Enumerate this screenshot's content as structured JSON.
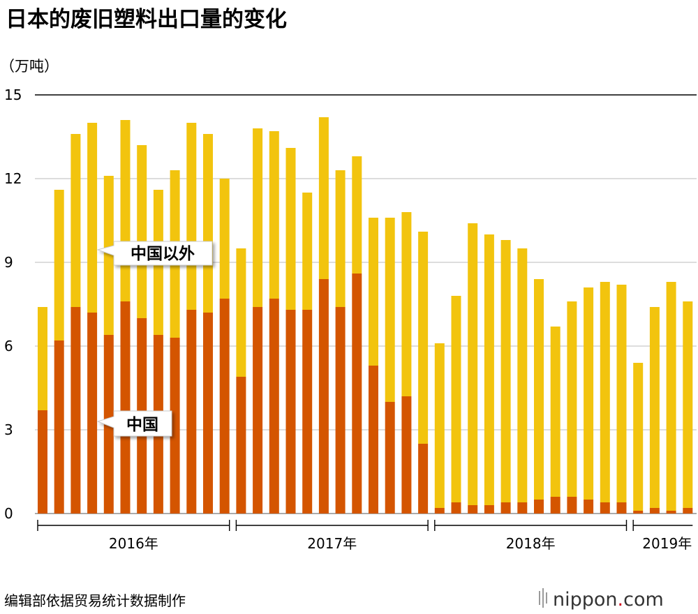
{
  "title": "日本的废旧塑料出口量的变化",
  "unit_label": "（万吨）",
  "source": "编辑部依据贸易统计数据制作",
  "brand": {
    "name": "nippon",
    "dot": ".",
    "suffix": "com"
  },
  "chart_data": {
    "type": "bar",
    "stacked": true,
    "ylim": [
      0,
      15
    ],
    "yticks": [
      "0",
      "3",
      "6",
      "9",
      "12",
      "15"
    ],
    "grid": true,
    "months": [
      "2016-01",
      "2016-02",
      "2016-03",
      "2016-04",
      "2016-05",
      "2016-06",
      "2016-07",
      "2016-08",
      "2016-09",
      "2016-10",
      "2016-11",
      "2016-12",
      "2017-01",
      "2017-02",
      "2017-03",
      "2017-04",
      "2017-05",
      "2017-06",
      "2017-07",
      "2017-08",
      "2017-09",
      "2017-10",
      "2017-11",
      "2017-12",
      "2018-01",
      "2018-02",
      "2018-03",
      "2018-04",
      "2018-05",
      "2018-06",
      "2018-07",
      "2018-08",
      "2018-09",
      "2018-10",
      "2018-11",
      "2018-12",
      "2019-01",
      "2019-02",
      "2019-03",
      "2019-04"
    ],
    "year_groups": [
      {
        "label": "2016年",
        "count": 12
      },
      {
        "label": "2017年",
        "count": 12
      },
      {
        "label": "2018年",
        "count": 12
      },
      {
        "label": "2019年",
        "count": 4
      }
    ],
    "series": [
      {
        "name": "中国",
        "color": "#d45500",
        "values": [
          3.7,
          6.2,
          7.4,
          7.2,
          6.4,
          7.6,
          7.0,
          6.4,
          6.3,
          7.3,
          7.2,
          7.7,
          4.9,
          7.4,
          7.7,
          7.3,
          7.3,
          8.4,
          7.4,
          8.6,
          5.3,
          4.0,
          4.2,
          2.5,
          0.2,
          0.4,
          0.3,
          0.3,
          0.4,
          0.4,
          0.5,
          0.6,
          0.6,
          0.5,
          0.4,
          0.4,
          0.1,
          0.2,
          0.1,
          0.2
        ]
      },
      {
        "name": "中国以外",
        "color": "#f2c40e",
        "values": [
          3.7,
          5.4,
          6.2,
          6.8,
          5.7,
          6.5,
          6.2,
          5.2,
          6.0,
          6.7,
          6.4,
          4.3,
          4.6,
          6.4,
          6.0,
          5.8,
          4.2,
          5.8,
          4.9,
          4.2,
          5.3,
          6.6,
          6.6,
          7.6,
          5.9,
          7.4,
          10.1,
          9.7,
          9.4,
          9.1,
          7.9,
          6.1,
          7.0,
          7.6,
          7.9,
          7.8,
          5.3,
          7.2,
          8.2,
          7.4
        ]
      }
    ]
  }
}
